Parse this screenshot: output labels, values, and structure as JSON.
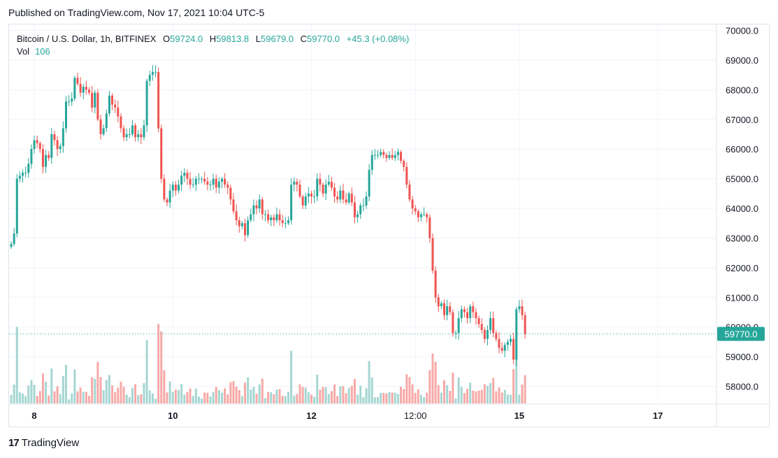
{
  "header": {
    "published": "Published on TradingView.com, Nov 17, 2021 10:04 UTC-5"
  },
  "legend": {
    "symbol": "Bitcoin / U.S. Dollar, 1h, BITFINEX",
    "o_label": "O",
    "o_value": "59724.0",
    "h_label": "H",
    "h_value": "59813.8",
    "l_label": "L",
    "l_value": "59679.0",
    "c_label": "C",
    "c_value": "59770.0",
    "change": "+45.3 (+0.08%)",
    "vol_label": "Vol",
    "vol_value": "106"
  },
  "footer": {
    "logo_text": "TradingView"
  },
  "colors": {
    "up": "#26a69a",
    "down": "#ef5350",
    "up_vol": "#a5d6d2",
    "down_vol": "#f7a9a7",
    "grid": "#f0f3fa"
  },
  "chart_data": {
    "type": "candlestick",
    "title": "Bitcoin / U.S. Dollar, 1h, BITFINEX",
    "y_ticks": [
      58000,
      59000,
      60000,
      61000,
      62000,
      63000,
      64000,
      65000,
      66000,
      67000,
      68000,
      69000,
      70000
    ],
    "y_tick_labels": [
      "58000.0",
      "59000.0",
      "60000.0",
      "61000.0",
      "62000.0",
      "63000.0",
      "64000.0",
      "65000.0",
      "66000.0",
      "67000.0",
      "68000.0",
      "69000.0",
      "70000.0"
    ],
    "ylim": [
      57400,
      70200
    ],
    "x_tick_labels": [
      {
        "label": "8",
        "bold": true,
        "candle": 8
      },
      {
        "label": "10",
        "bold": true,
        "candle": 56
      },
      {
        "label": "12",
        "bold": true,
        "candle": 104
      },
      {
        "label": "12:00",
        "bold": false,
        "candle": 140
      },
      {
        "label": "15",
        "bold": true,
        "candle": 176
      },
      {
        "label": "17",
        "bold": true,
        "candle": 224
      }
    ],
    "last_price": 59770.0,
    "last_price_label": "59770.0",
    "closes": [
      62800,
      63150,
      65000,
      65100,
      65200,
      65200,
      65500,
      66000,
      66300,
      66200,
      66000,
      65400,
      65800,
      65700,
      66500,
      66300,
      66000,
      66100,
      66700,
      67600,
      67600,
      67700,
      68400,
      68200,
      67900,
      68100,
      68000,
      67900,
      67400,
      67900,
      67000,
      66500,
      66700,
      67200,
      67800,
      67500,
      67400,
      67100,
      66700,
      66400,
      66500,
      66500,
      66800,
      66400,
      66500,
      66400,
      66800,
      68300,
      68500,
      68600,
      68600,
      66700,
      65000,
      64300,
      64200,
      64600,
      64800,
      64600,
      64800,
      65100,
      65200,
      65000,
      64800,
      64800,
      65000,
      65000,
      65000,
      64900,
      64800,
      64800,
      65000,
      64700,
      64900,
      65000,
      64800,
      64700,
      64300,
      63900,
      63600,
      63400,
      63500,
      63100,
      63600,
      63800,
      64100,
      64000,
      64300,
      63800,
      63800,
      63600,
      63700,
      63600,
      63800,
      63600,
      63500,
      63500,
      63600,
      64800,
      64900,
      64800,
      64400,
      64100,
      64400,
      64500,
      64400,
      64400,
      65000,
      64800,
      64500,
      64800,
      64900,
      64700,
      64400,
      64300,
      64600,
      64300,
      64200,
      64500,
      64200,
      63700,
      63800,
      64100,
      64100,
      64400,
      65300,
      65800,
      65800,
      65800,
      65900,
      65800,
      65700,
      65800,
      65700,
      65800,
      65900,
      65600,
      65400,
      64800,
      64300,
      64000,
      63900,
      63700,
      63800,
      63800,
      63700,
      63000,
      61900,
      61000,
      60700,
      60800,
      60400,
      60700,
      60500,
      59800,
      59800,
      60300,
      60600,
      60500,
      60300,
      60700,
      60500,
      60300,
      60100,
      59900,
      59600,
      59900,
      60300,
      59800,
      59600,
      59300,
      59200,
      59400,
      59500,
      59600,
      58900,
      60600,
      60700,
      60400,
      59770
    ]
  }
}
